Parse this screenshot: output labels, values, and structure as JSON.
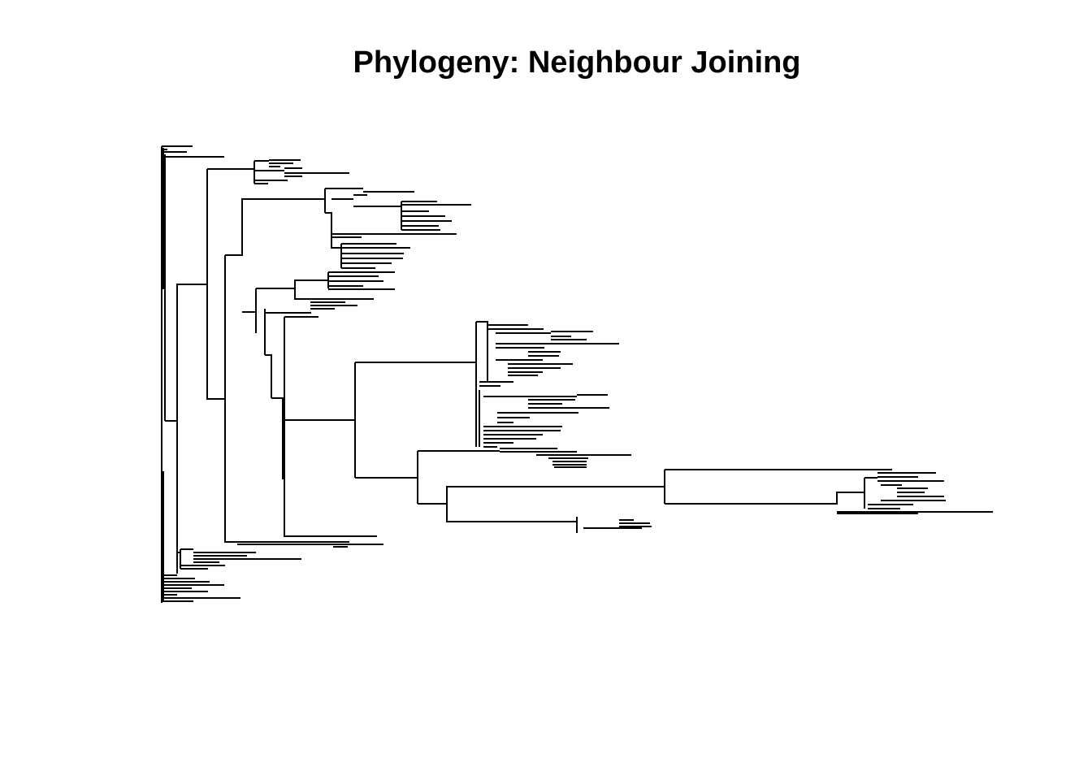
{
  "title": "Phylogeny: Neighbour Joining",
  "colors": {
    "line": "#000000",
    "background": "#ffffff",
    "title": "#000000"
  }
}
